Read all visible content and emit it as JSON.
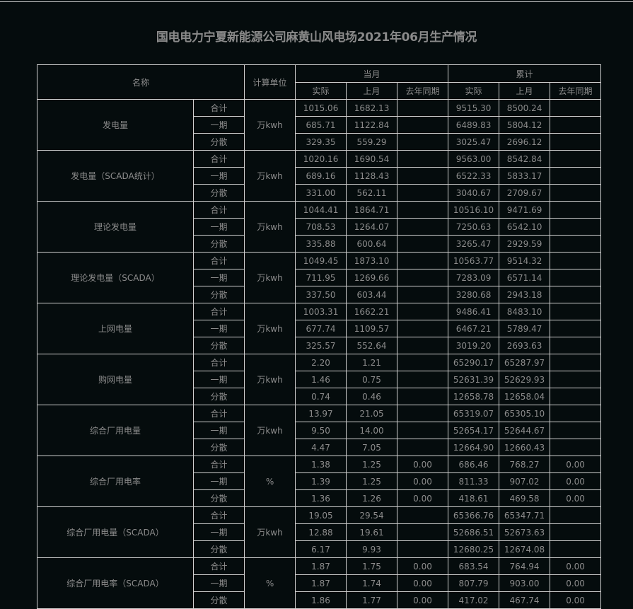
{
  "title": "国电电力宁夏新能源公司麻黄山风电场2021年06月生产情况",
  "header": {
    "name": "名称",
    "unit": "计算单位",
    "month": "当月",
    "cumulative": "累计",
    "actual": "实际",
    "last_month": "上月",
    "last_year": "去年同期"
  },
  "groups": [
    {
      "name": "发电量",
      "unit": "万kwh",
      "rows": [
        {
          "sub": "合计",
          "m_actual": "1015.06",
          "m_last": "1682.13",
          "m_ly": "",
          "c_actual": "9515.30",
          "c_last": "8500.24",
          "c_ly": ""
        },
        {
          "sub": "一期",
          "m_actual": "685.71",
          "m_last": "1122.84",
          "m_ly": "",
          "c_actual": "6489.83",
          "c_last": "5804.12",
          "c_ly": ""
        },
        {
          "sub": "分散",
          "m_actual": "329.35",
          "m_last": "559.29",
          "m_ly": "",
          "c_actual": "3025.47",
          "c_last": "2696.12",
          "c_ly": ""
        }
      ]
    },
    {
      "name": "发电量（SCADA统计）",
      "unit": "万kwh",
      "rows": [
        {
          "sub": "合计",
          "m_actual": "1020.16",
          "m_last": "1690.54",
          "m_ly": "",
          "c_actual": "9563.00",
          "c_last": "8542.84",
          "c_ly": ""
        },
        {
          "sub": "一期",
          "m_actual": "689.16",
          "m_last": "1128.43",
          "m_ly": "",
          "c_actual": "6522.33",
          "c_last": "5833.17",
          "c_ly": ""
        },
        {
          "sub": "分散",
          "m_actual": "331.00",
          "m_last": "562.11",
          "m_ly": "",
          "c_actual": "3040.67",
          "c_last": "2709.67",
          "c_ly": ""
        }
      ]
    },
    {
      "name": "理论发电量",
      "unit": "万kwh",
      "rows": [
        {
          "sub": "合计",
          "m_actual": "1044.41",
          "m_last": "1864.71",
          "m_ly": "",
          "c_actual": "10516.10",
          "c_last": "9471.69",
          "c_ly": ""
        },
        {
          "sub": "一期",
          "m_actual": "708.53",
          "m_last": "1264.07",
          "m_ly": "",
          "c_actual": "7250.63",
          "c_last": "6542.10",
          "c_ly": ""
        },
        {
          "sub": "分散",
          "m_actual": "335.88",
          "m_last": "600.64",
          "m_ly": "",
          "c_actual": "3265.47",
          "c_last": "2929.59",
          "c_ly": ""
        }
      ]
    },
    {
      "name": "理论发电量（SCADA）",
      "unit": "万kwh",
      "rows": [
        {
          "sub": "合计",
          "m_actual": "1049.45",
          "m_last": "1873.10",
          "m_ly": "",
          "c_actual": "10563.77",
          "c_last": "9514.32",
          "c_ly": ""
        },
        {
          "sub": "一期",
          "m_actual": "711.95",
          "m_last": "1269.66",
          "m_ly": "",
          "c_actual": "7283.09",
          "c_last": "6571.14",
          "c_ly": ""
        },
        {
          "sub": "分散",
          "m_actual": "337.50",
          "m_last": "603.44",
          "m_ly": "",
          "c_actual": "3280.68",
          "c_last": "2943.18",
          "c_ly": ""
        }
      ]
    },
    {
      "name": "上网电量",
      "unit": "万kwh",
      "rows": [
        {
          "sub": "合计",
          "m_actual": "1003.31",
          "m_last": "1662.21",
          "m_ly": "",
          "c_actual": "9486.41",
          "c_last": "8483.10",
          "c_ly": ""
        },
        {
          "sub": "一期",
          "m_actual": "677.74",
          "m_last": "1109.57",
          "m_ly": "",
          "c_actual": "6467.21",
          "c_last": "5789.47",
          "c_ly": ""
        },
        {
          "sub": "分散",
          "m_actual": "325.57",
          "m_last": "552.64",
          "m_ly": "",
          "c_actual": "3019.20",
          "c_last": "2693.63",
          "c_ly": ""
        }
      ]
    },
    {
      "name": "购网电量",
      "unit": "万kwh",
      "rows": [
        {
          "sub": "合计",
          "m_actual": "2.20",
          "m_last": "1.21",
          "m_ly": "",
          "c_actual": "65290.17",
          "c_last": "65287.97",
          "c_ly": ""
        },
        {
          "sub": "一期",
          "m_actual": "1.46",
          "m_last": "0.75",
          "m_ly": "",
          "c_actual": "52631.39",
          "c_last": "52629.93",
          "c_ly": ""
        },
        {
          "sub": "分散",
          "m_actual": "0.74",
          "m_last": "0.46",
          "m_ly": "",
          "c_actual": "12658.78",
          "c_last": "12658.04",
          "c_ly": ""
        }
      ]
    },
    {
      "name": "综合厂用电量",
      "unit": "万kwh",
      "rows": [
        {
          "sub": "合计",
          "m_actual": "13.97",
          "m_last": "21.05",
          "m_ly": "",
          "c_actual": "65319.07",
          "c_last": "65305.10",
          "c_ly": ""
        },
        {
          "sub": "一期",
          "m_actual": "9.50",
          "m_last": "14.00",
          "m_ly": "",
          "c_actual": "52654.17",
          "c_last": "52644.67",
          "c_ly": ""
        },
        {
          "sub": "分散",
          "m_actual": "4.47",
          "m_last": "7.05",
          "m_ly": "",
          "c_actual": "12664.90",
          "c_last": "12660.43",
          "c_ly": ""
        }
      ]
    },
    {
      "name": "综合厂用电率",
      "unit": "%",
      "rows": [
        {
          "sub": "合计",
          "m_actual": "1.38",
          "m_last": "1.25",
          "m_ly": "0.00",
          "c_actual": "686.46",
          "c_last": "768.27",
          "c_ly": "0.00"
        },
        {
          "sub": "一期",
          "m_actual": "1.39",
          "m_last": "1.25",
          "m_ly": "0.00",
          "c_actual": "811.33",
          "c_last": "907.02",
          "c_ly": "0.00"
        },
        {
          "sub": "分散",
          "m_actual": "1.36",
          "m_last": "1.26",
          "m_ly": "0.00",
          "c_actual": "418.61",
          "c_last": "469.58",
          "c_ly": "0.00"
        }
      ]
    },
    {
      "name": "综合厂用电量（SCADA）",
      "unit": "万kwh",
      "rows": [
        {
          "sub": "合计",
          "m_actual": "19.05",
          "m_last": "29.54",
          "m_ly": "",
          "c_actual": "65366.76",
          "c_last": "65347.71",
          "c_ly": ""
        },
        {
          "sub": "一期",
          "m_actual": "12.88",
          "m_last": "19.61",
          "m_ly": "",
          "c_actual": "52686.51",
          "c_last": "52673.63",
          "c_ly": ""
        },
        {
          "sub": "分散",
          "m_actual": "6.17",
          "m_last": "9.93",
          "m_ly": "",
          "c_actual": "12680.25",
          "c_last": "12674.08",
          "c_ly": ""
        }
      ]
    },
    {
      "name": "综合厂用电率（SCADA）",
      "unit": "%",
      "rows": [
        {
          "sub": "合计",
          "m_actual": "1.87",
          "m_last": "1.75",
          "m_ly": "0.00",
          "c_actual": "683.54",
          "c_last": "764.94",
          "c_ly": "0.00"
        },
        {
          "sub": "一期",
          "m_actual": "1.87",
          "m_last": "1.74",
          "m_ly": "0.00",
          "c_actual": "807.79",
          "c_last": "903.00",
          "c_ly": "0.00"
        },
        {
          "sub": "分散",
          "m_actual": "1.86",
          "m_last": "1.77",
          "m_ly": "0.00",
          "c_actual": "417.02",
          "c_last": "467.74",
          "c_ly": "0.00"
        }
      ]
    }
  ]
}
